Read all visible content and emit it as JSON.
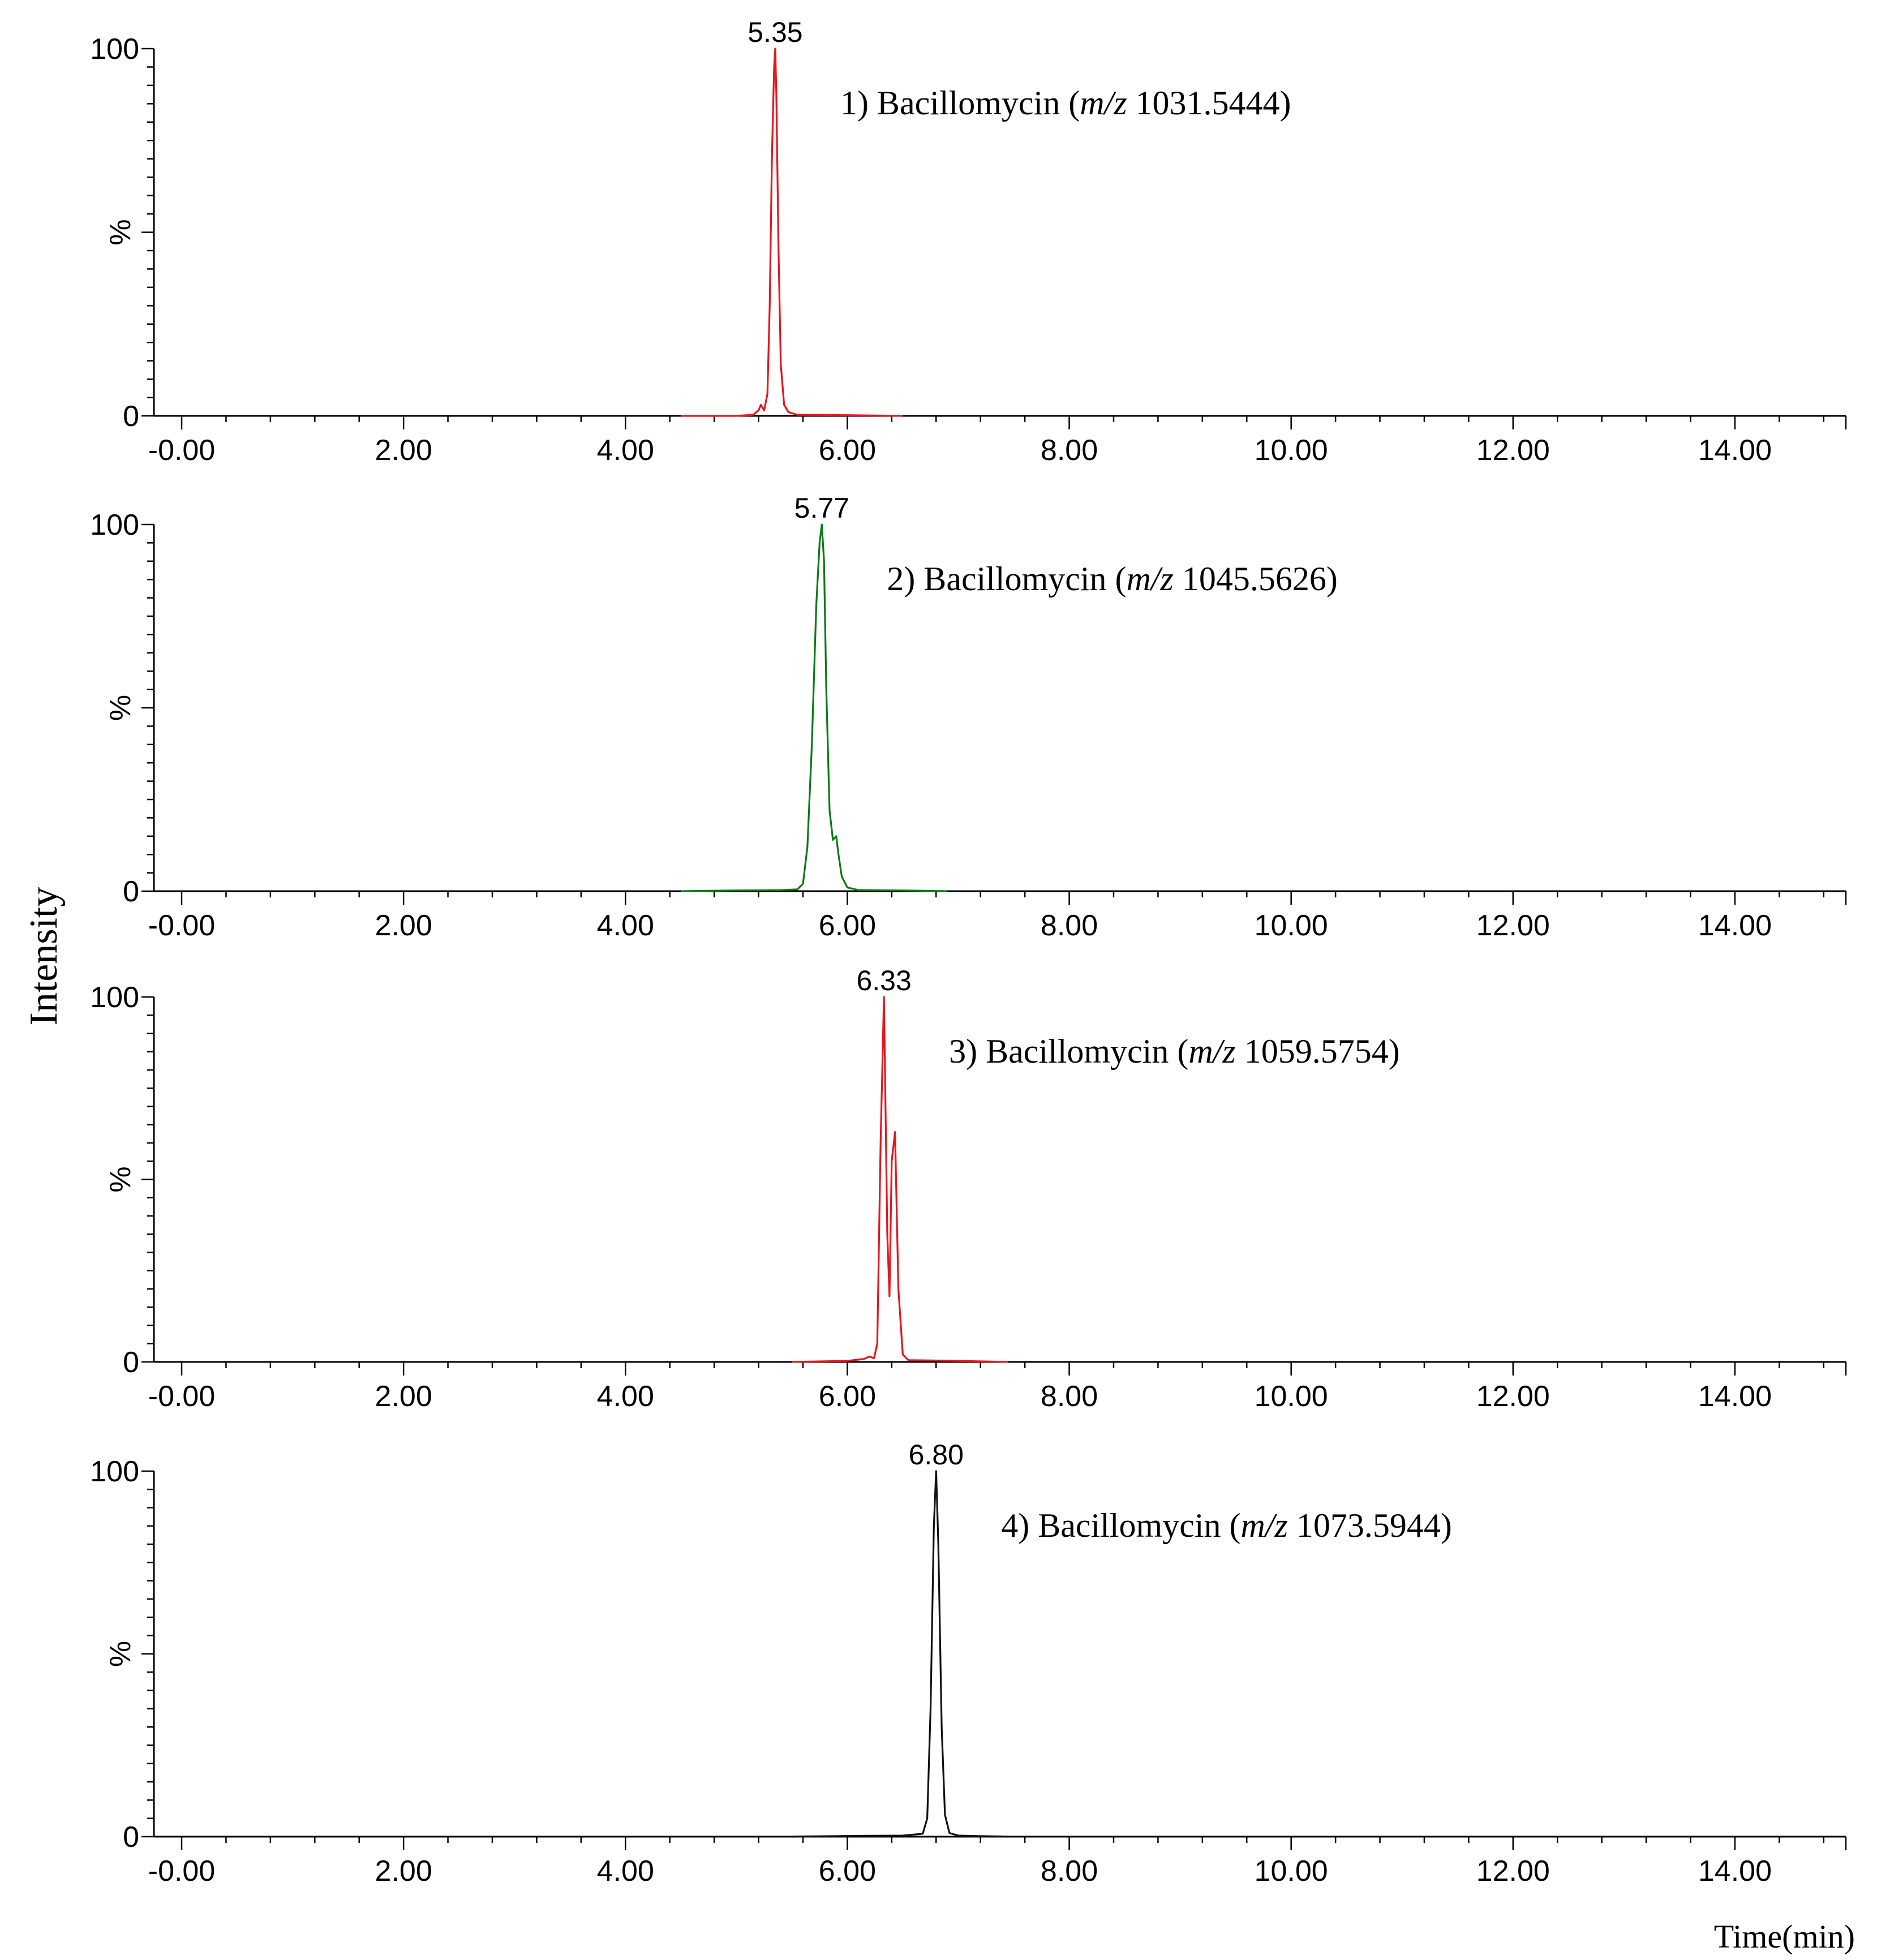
{
  "figure": {
    "y_axis_label": "Intensity",
    "x_unit_label": "Time(min)"
  },
  "chart_data": [
    {
      "type": "line",
      "name_prefix": "1) Bacillomycin (",
      "mz_label": "m/z",
      "mz_value": " 1031.5444)",
      "peak_label": "5.35",
      "peak_x": 5.35,
      "color": "#e8141b",
      "xlim": [
        -0.25,
        15.0
      ],
      "ylim": [
        0,
        100
      ],
      "x_ticks": [
        "-0.00",
        "2.00",
        "4.00",
        "6.00",
        "8.00",
        "10.00",
        "12.00",
        "14.00"
      ],
      "y_ticks": [
        "0",
        "%",
        "100"
      ],
      "series": [
        {
          "x": [
            4.5,
            5.0,
            5.15,
            5.2,
            5.22,
            5.25,
            5.28,
            5.3,
            5.32,
            5.34,
            5.35,
            5.36,
            5.38,
            5.4,
            5.43,
            5.47,
            5.55,
            6.0,
            6.5
          ],
          "y": [
            0,
            0,
            0.3,
            1.5,
            3,
            1.5,
            6,
            30,
            70,
            95,
            100,
            88,
            45,
            14,
            3,
            1,
            0.3,
            0.2,
            0
          ]
        }
      ]
    },
    {
      "type": "line",
      "name_prefix": "2) Bacillomycin (",
      "mz_label": "m/z",
      "mz_value": " 1045.5626)",
      "peak_label": "5.77",
      "peak_x": 5.77,
      "color": "#0a7a17",
      "xlim": [
        -0.25,
        15.0
      ],
      "ylim": [
        0,
        100
      ],
      "x_ticks": [
        "-0.00",
        "2.00",
        "4.00",
        "6.00",
        "8.00",
        "10.00",
        "12.00",
        "14.00"
      ],
      "y_ticks": [
        "0",
        "%",
        "100"
      ],
      "series": [
        {
          "x": [
            4.5,
            5.0,
            5.4,
            5.55,
            5.6,
            5.64,
            5.68,
            5.72,
            5.75,
            5.77,
            5.79,
            5.81,
            5.84,
            5.87,
            5.9,
            5.92,
            5.95,
            6.0,
            6.1,
            6.5,
            6.9
          ],
          "y": [
            0,
            0.2,
            0.3,
            0.5,
            2,
            12,
            40,
            78,
            95,
            100,
            90,
            55,
            22,
            14,
            15,
            10,
            4,
            1,
            0.3,
            0.2,
            0
          ]
        }
      ]
    },
    {
      "type": "line",
      "name_prefix": "3) Bacillomycin (",
      "mz_label": "m/z",
      "mz_value": " 1059.5754)",
      "peak_label": "6.33",
      "peak_x": 6.33,
      "color": "#e8141b",
      "xlim": [
        -0.25,
        15.0
      ],
      "ylim": [
        0,
        100
      ],
      "x_ticks": [
        "-0.00",
        "2.00",
        "4.00",
        "6.00",
        "8.00",
        "10.00",
        "12.00",
        "14.00"
      ],
      "y_ticks": [
        "0",
        "%",
        "100"
      ],
      "series": [
        {
          "x": [
            5.5,
            6.0,
            6.15,
            6.2,
            6.24,
            6.27,
            6.3,
            6.33,
            6.36,
            6.38,
            6.4,
            6.43,
            6.46,
            6.5,
            6.55,
            7.0,
            7.45
          ],
          "y": [
            0,
            0.3,
            0.8,
            1.5,
            1,
            5,
            60,
            100,
            35,
            18,
            55,
            63,
            20,
            2,
            0.5,
            0.3,
            0
          ]
        }
      ]
    },
    {
      "type": "line",
      "name_prefix": "4) Bacillomycin (",
      "mz_label": "m/z",
      "mz_value": " 1073.5944)",
      "peak_label": "6.80",
      "peak_x": 6.8,
      "color": "#111111",
      "xlim": [
        -0.25,
        15.0
      ],
      "ylim": [
        0,
        100
      ],
      "x_ticks": [
        "-0.00",
        "2.00",
        "4.00",
        "6.00",
        "8.00",
        "10.00",
        "12.00",
        "14.00"
      ],
      "y_ticks": [
        "0",
        "%",
        "100"
      ],
      "series": [
        {
          "x": [
            5.5,
            6.0,
            6.5,
            6.68,
            6.72,
            6.75,
            6.78,
            6.8,
            6.82,
            6.85,
            6.88,
            6.92,
            7.0,
            7.45
          ],
          "y": [
            0,
            0.2,
            0.3,
            0.8,
            5,
            35,
            85,
            100,
            80,
            30,
            6,
            1,
            0.3,
            0
          ]
        }
      ]
    }
  ]
}
